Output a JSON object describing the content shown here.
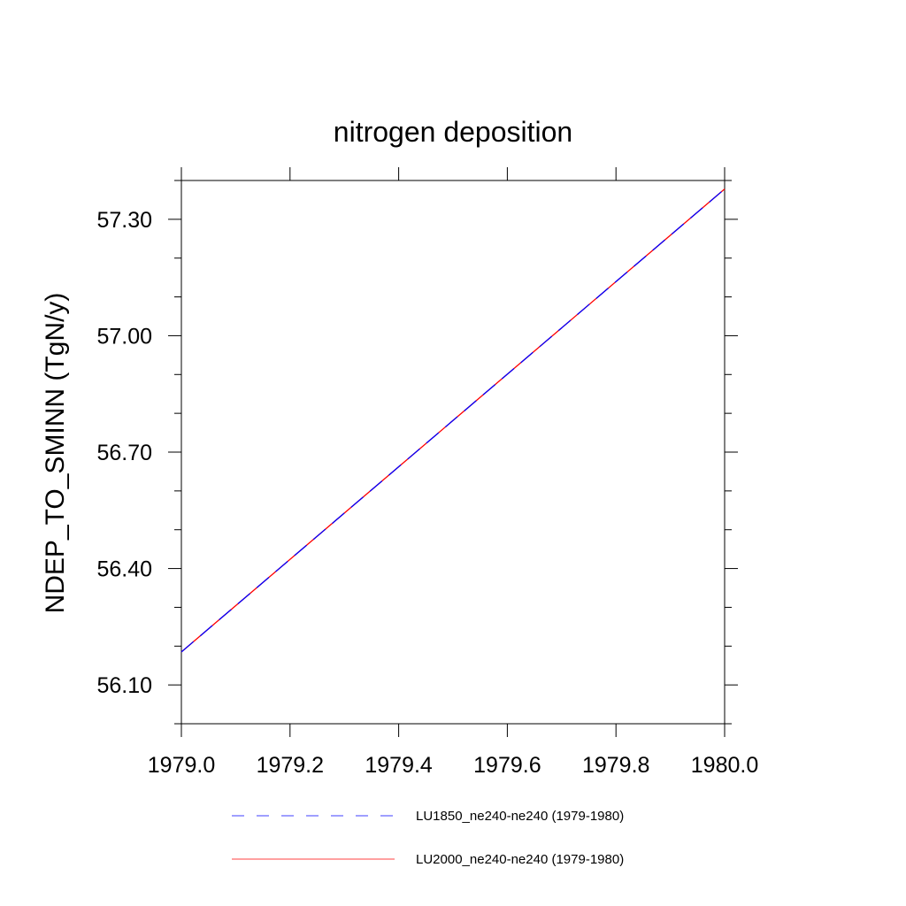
{
  "chart_data": {
    "type": "line",
    "title": "nitrogen deposition",
    "xlabel": "",
    "ylabel": "NDEP_TO_SMINN  (TgN/y)",
    "xlim": [
      1979.0,
      1980.0
    ],
    "ylim": [
      56.0,
      57.4
    ],
    "x_ticks": [
      1979.0,
      1979.2,
      1979.4,
      1979.6,
      1979.8,
      1980.0
    ],
    "x_tick_labels": [
      "1979.0",
      "1979.2",
      "1979.4",
      "1979.6",
      "1979.8",
      "1980.0"
    ],
    "y_ticks": [
      56.1,
      56.4,
      56.7,
      57.0,
      57.3
    ],
    "y_tick_labels": [
      "56.10",
      "56.40",
      "56.70",
      "57.00",
      "57.30"
    ],
    "y_minor_ticks": [
      56.0,
      56.2,
      56.3,
      56.5,
      56.6,
      56.8,
      56.9,
      57.1,
      57.2,
      57.4
    ],
    "grid": false,
    "legend_position": "bottom",
    "series": [
      {
        "name": "LU1850_ne240-ne240 (1979-1980)",
        "color": "#0000ff",
        "dash": "dashed",
        "x": [
          1979.0,
          1980.0
        ],
        "y": [
          56.185,
          57.378
        ]
      },
      {
        "name": "LU2000_ne240-ne240 (1979-1980)",
        "color": "#ff0000",
        "dash": "solid",
        "x": [
          1979.0,
          1980.0
        ],
        "y": [
          56.185,
          57.378
        ]
      }
    ]
  }
}
